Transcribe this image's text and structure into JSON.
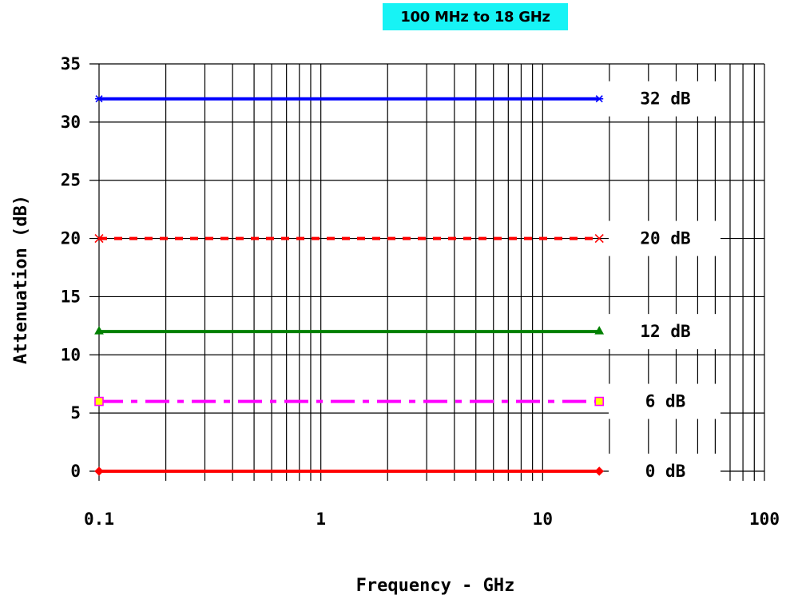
{
  "chart_data": {
    "type": "line",
    "title": "100 MHz to 18 GHz",
    "xlabel": "Frequency - GHz",
    "ylabel": "Attenuation (dB)",
    "xscale": "log",
    "xlim": [
      0.1,
      100
    ],
    "ylim": [
      0,
      35
    ],
    "x_ticks": [
      "0.1",
      "1",
      "10",
      "100"
    ],
    "y_ticks": [
      "0",
      "5",
      "10",
      "15",
      "20",
      "25",
      "30",
      "35"
    ],
    "grid": true,
    "series": [
      {
        "name": "32 dB",
        "x": [
          0.1,
          18
        ],
        "y": [
          32,
          32
        ],
        "color": "#0000ff",
        "dash": "solid",
        "marker": "asterisk"
      },
      {
        "name": "20 dB",
        "x": [
          0.1,
          18
        ],
        "y": [
          20,
          20
        ],
        "color": "#ff0000",
        "dash": "dashed",
        "marker": "x"
      },
      {
        "name": "12 dB",
        "x": [
          0.1,
          18
        ],
        "y": [
          12,
          12
        ],
        "color": "#008000",
        "dash": "solid",
        "marker": "triangle"
      },
      {
        "name": "6 dB",
        "x": [
          0.1,
          18
        ],
        "y": [
          6,
          6
        ],
        "color": "#ff00ff",
        "dash": "dashdot",
        "marker": "square"
      },
      {
        "name": "0 dB",
        "x": [
          0.1,
          18
        ],
        "y": [
          0,
          0
        ],
        "color": "#ff0000",
        "dash": "solid",
        "marker": "diamond"
      }
    ]
  }
}
